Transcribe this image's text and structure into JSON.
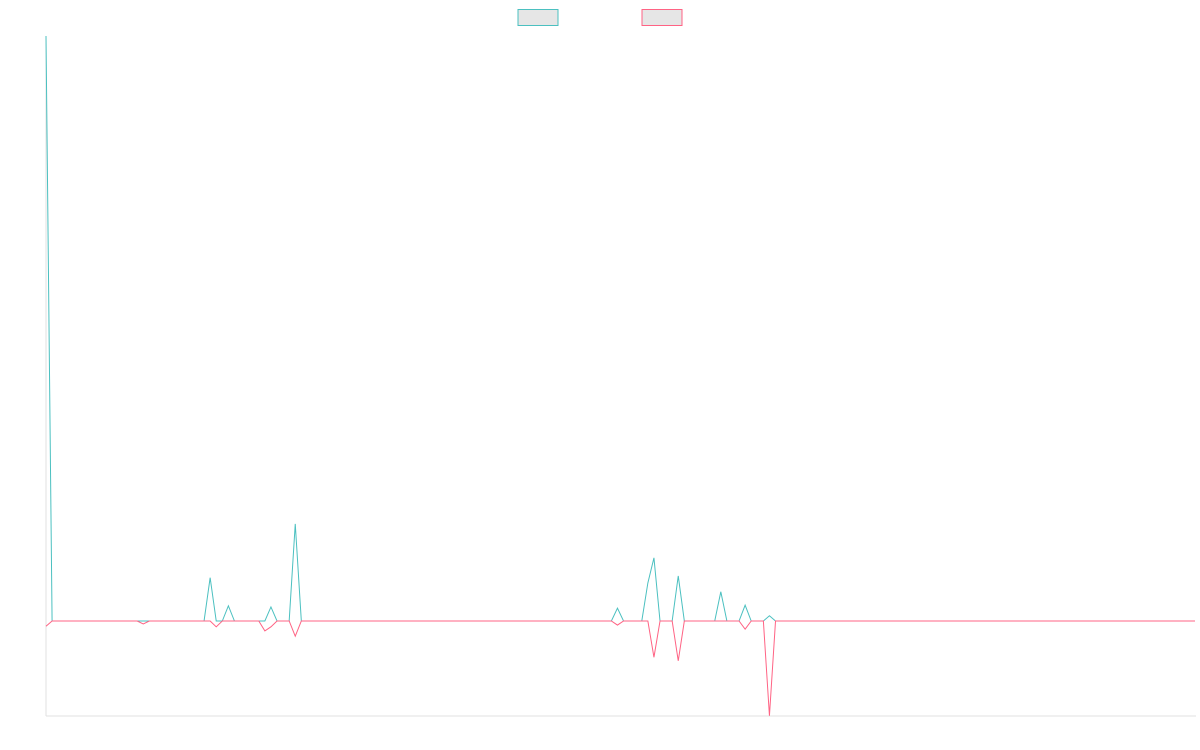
{
  "chart_data": {
    "type": "line",
    "legend": "top",
    "grid": false,
    "ylim": [
      -16.24,
      100
    ],
    "series": [
      {
        "color": "#4bc0c0",
        "values": [
          100,
          0,
          0,
          0,
          0,
          0,
          0,
          0,
          0,
          0,
          0,
          0,
          0,
          0,
          0,
          0,
          0,
          0,
          0,
          0,
          0,
          0,
          0,
          0,
          0,
          0,
          0,
          7.4,
          0,
          0,
          2.6,
          0,
          0,
          0,
          0,
          0,
          0,
          2.4,
          0,
          0,
          0,
          16.6,
          0,
          0,
          0,
          0,
          0,
          0,
          0,
          0,
          0,
          0,
          0,
          0,
          0,
          0,
          0,
          0,
          0,
          0,
          0,
          0,
          0,
          0,
          0,
          0,
          0,
          0,
          0,
          0,
          0,
          0,
          0,
          0,
          0,
          0,
          0,
          0,
          0,
          0,
          0,
          0,
          0,
          0,
          0,
          0,
          0,
          0,
          0,
          0,
          0,
          0,
          0,
          0,
          2.2,
          0,
          0,
          0,
          0,
          6.5,
          10.8,
          0,
          0,
          0,
          7.7,
          0,
          0,
          0,
          0,
          0,
          0,
          5.0,
          0,
          0,
          0,
          2.7,
          0,
          0,
          0,
          0.9,
          0,
          0,
          0,
          0,
          0,
          0,
          0,
          0,
          0,
          0,
          0,
          0,
          0,
          0,
          0,
          0,
          0,
          0,
          0,
          0,
          0,
          0,
          0,
          0,
          0,
          0,
          0,
          0,
          0,
          0,
          0,
          0,
          0,
          0,
          0,
          0,
          0,
          0,
          0,
          0,
          0,
          0,
          0,
          0,
          0,
          0,
          0,
          0,
          0,
          0,
          0,
          0,
          0,
          0,
          0,
          0,
          0,
          0,
          0,
          0,
          0,
          0,
          0,
          0,
          0,
          0,
          0,
          0,
          0,
          0
        ]
      },
      {
        "color": "#ff6384",
        "values": [
          -0.9,
          0,
          0,
          0,
          0,
          0,
          0,
          0,
          0,
          0,
          0,
          0,
          0,
          0,
          0,
          0,
          -0.5,
          0,
          0,
          0,
          0,
          0,
          0,
          0,
          0,
          0,
          0,
          0,
          -1.0,
          0,
          0,
          0,
          0,
          0,
          0,
          0,
          -1.7,
          -1.0,
          0,
          0,
          0,
          -2.6,
          0,
          0,
          0,
          0,
          0,
          0,
          0,
          0,
          0,
          0,
          0,
          0,
          0,
          0,
          0,
          0,
          0,
          0,
          0,
          0,
          0,
          0,
          0,
          0,
          0,
          0,
          0,
          0,
          0,
          0,
          0,
          0,
          0,
          0,
          0,
          0,
          0,
          0,
          0,
          0,
          0,
          0,
          0,
          0,
          0,
          0,
          0,
          0,
          0,
          0,
          0,
          0,
          -0.7,
          0,
          0,
          0,
          0,
          0,
          -6.2,
          0,
          0,
          0,
          -6.8,
          0,
          0,
          0,
          0,
          0,
          0,
          0,
          0,
          0,
          0,
          -1.4,
          0,
          0,
          0,
          -16.2,
          0,
          0,
          0,
          0,
          0,
          0,
          0,
          0,
          0,
          0,
          0,
          0,
          0,
          0,
          0,
          0,
          0,
          0,
          0,
          0,
          0,
          0,
          0,
          0,
          0,
          0,
          0,
          0,
          0,
          0,
          0,
          0,
          0,
          0,
          0,
          0,
          0,
          0,
          0,
          0,
          0,
          0,
          0,
          0,
          0,
          0,
          0,
          0,
          0,
          0,
          0,
          0,
          0,
          0,
          0,
          0,
          0,
          0,
          0,
          0,
          0,
          0,
          0,
          0,
          0,
          0,
          0,
          0,
          0,
          0
        ]
      }
    ]
  }
}
